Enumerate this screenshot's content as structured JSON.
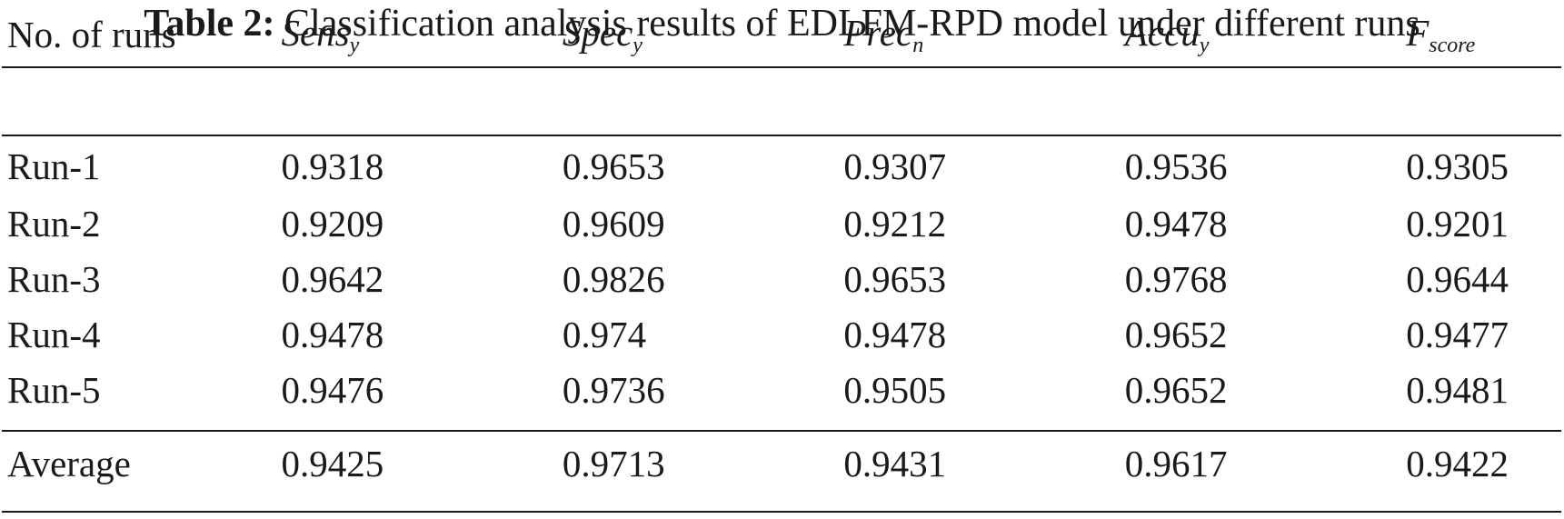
{
  "caption": {
    "label": "Table 2:",
    "text": "Classification analysis results of EDLFM-RPD model under different runs"
  },
  "table": {
    "header": {
      "first": "No. of runs",
      "metrics": [
        {
          "base": "Sens",
          "sub": "y"
        },
        {
          "base": "Spec",
          "sub": "y"
        },
        {
          "base": "Prec",
          "sub": "n"
        },
        {
          "base": "Accu",
          "sub": "y"
        },
        {
          "base": "F",
          "sub": "score"
        }
      ]
    },
    "rows": [
      {
        "name": "Run-1",
        "values": [
          "0.9318",
          "0.9653",
          "0.9307",
          "0.9536",
          "0.9305"
        ]
      },
      {
        "name": "Run-2",
        "values": [
          "0.9209",
          "0.9609",
          "0.9212",
          "0.9478",
          "0.9201"
        ]
      },
      {
        "name": "Run-3",
        "values": [
          "0.9642",
          "0.9826",
          "0.9653",
          "0.9768",
          "0.9644"
        ]
      },
      {
        "name": "Run-4",
        "values": [
          "0.9478",
          "0.974",
          "0.9478",
          "0.9652",
          "0.9477"
        ]
      },
      {
        "name": "Run-5",
        "values": [
          "0.9476",
          "0.9736",
          "0.9505",
          "0.9652",
          "0.9481"
        ]
      }
    ],
    "average": {
      "name": "Average",
      "values": [
        "0.9425",
        "0.9713",
        "0.9431",
        "0.9617",
        "0.9422"
      ]
    }
  }
}
